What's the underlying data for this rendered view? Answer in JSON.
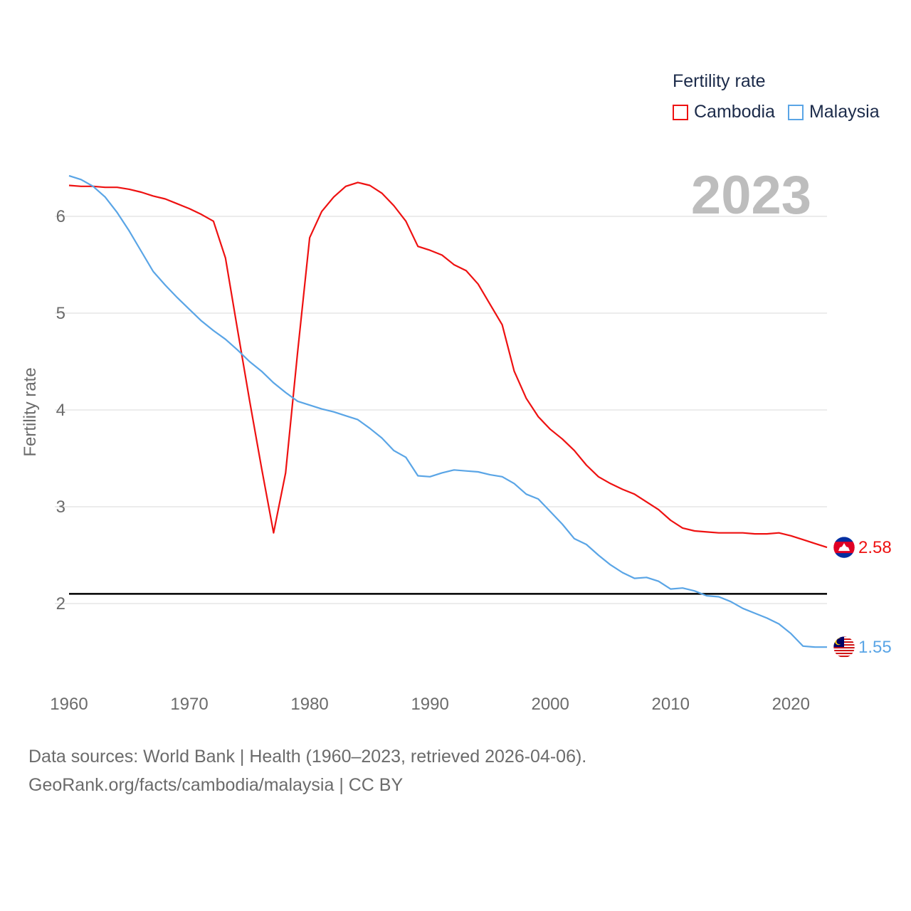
{
  "legend": {
    "title": "Fertility rate"
  },
  "year_label": "2023",
  "footer": {
    "line1": "Data sources: World Bank | Health (1960–2023, retrieved 2026-04-06).",
    "line2": "GeoRank.org/facts/cambodia/malaysia | CC BY"
  },
  "chart_data": {
    "type": "line",
    "title": "Fertility rate",
    "xlabel": "",
    "ylabel": "Fertility rate",
    "xlim": [
      1960,
      2023
    ],
    "ylim": [
      1.2,
      6.6
    ],
    "x_ticks": [
      1960,
      1970,
      1980,
      1990,
      2000,
      2010,
      2020
    ],
    "y_ticks": [
      2,
      3,
      4,
      5,
      6
    ],
    "grid": "horizontal",
    "legend_position": "top-right",
    "reference_line": {
      "y": 2.1
    },
    "x": [
      1960,
      1961,
      1962,
      1963,
      1964,
      1965,
      1966,
      1967,
      1968,
      1969,
      1970,
      1971,
      1972,
      1973,
      1974,
      1975,
      1976,
      1977,
      1978,
      1979,
      1980,
      1981,
      1982,
      1983,
      1984,
      1985,
      1986,
      1987,
      1988,
      1989,
      1990,
      1991,
      1992,
      1993,
      1994,
      1995,
      1996,
      1997,
      1998,
      1999,
      2000,
      2001,
      2002,
      2003,
      2004,
      2005,
      2006,
      2007,
      2008,
      2009,
      2010,
      2011,
      2012,
      2013,
      2014,
      2015,
      2016,
      2017,
      2018,
      2019,
      2020,
      2021,
      2022,
      2023
    ],
    "series": [
      {
        "name": "Cambodia",
        "color": "#ee1111",
        "end_label": "2.58",
        "values": [
          6.32,
          6.31,
          6.31,
          6.3,
          6.3,
          6.28,
          6.25,
          6.21,
          6.18,
          6.13,
          6.08,
          6.02,
          5.95,
          5.57,
          4.83,
          4.1,
          3.4,
          2.73,
          3.35,
          4.6,
          5.78,
          6.05,
          6.2,
          6.31,
          6.35,
          6.32,
          6.24,
          6.11,
          5.95,
          5.69,
          5.65,
          5.6,
          5.5,
          5.44,
          5.3,
          5.09,
          4.88,
          4.4,
          4.12,
          3.93,
          3.8,
          3.7,
          3.58,
          3.43,
          3.31,
          3.24,
          3.18,
          3.13,
          3.05,
          2.97,
          2.86,
          2.78,
          2.75,
          2.74,
          2.73,
          2.73,
          2.73,
          2.72,
          2.72,
          2.73,
          2.7,
          2.66,
          2.62,
          2.58
        ]
      },
      {
        "name": "Malaysia",
        "color": "#5aa5e6",
        "end_label": "1.55",
        "values": [
          6.42,
          6.38,
          6.31,
          6.2,
          6.04,
          5.85,
          5.64,
          5.43,
          5.29,
          5.16,
          5.04,
          4.92,
          4.82,
          4.73,
          4.62,
          4.5,
          4.4,
          4.28,
          4.18,
          4.09,
          4.05,
          4.01,
          3.98,
          3.94,
          3.9,
          3.81,
          3.71,
          3.58,
          3.51,
          3.32,
          3.31,
          3.35,
          3.38,
          3.37,
          3.36,
          3.33,
          3.31,
          3.24,
          3.13,
          3.08,
          2.95,
          2.82,
          2.67,
          2.61,
          2.5,
          2.4,
          2.32,
          2.26,
          2.27,
          2.23,
          2.15,
          2.16,
          2.13,
          2.08,
          2.07,
          2.02,
          1.95,
          1.9,
          1.85,
          1.79,
          1.69,
          1.56,
          1.55,
          1.55
        ]
      }
    ]
  }
}
